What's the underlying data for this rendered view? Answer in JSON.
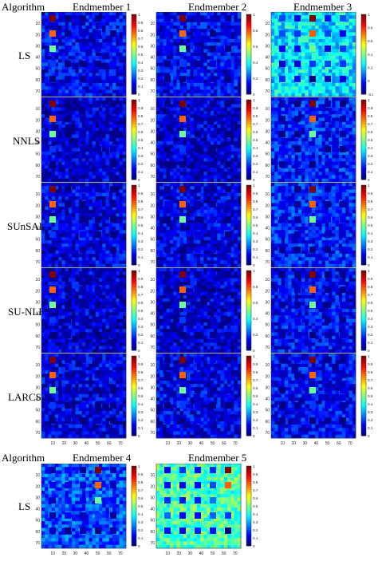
{
  "headers": {
    "top": [
      "Algorithm",
      "Endmember 1",
      "Endmember 2",
      "Endmember 3"
    ],
    "bottom": [
      "Algorithm",
      "Endmember 4",
      "Endmember 5"
    ]
  },
  "algorithms": [
    "LS",
    "NNLS",
    "SUnSAL",
    "SU-NLE",
    "LARCSU",
    "LS"
  ],
  "chart_data": {
    "type": "heatmap",
    "description_of_grid": "abundance maps 75x75 px, 5x5 grid of squares",
    "axis_ticks": [
      "10",
      "20",
      "30",
      "40",
      "50",
      "60",
      "70"
    ],
    "colormap": "jet",
    "panels": [
      {
        "algorithm": "LS",
        "endmember": "Endmember 1",
        "cbar": [
          "1",
          "0.9",
          "0.8",
          "0.7",
          "0.6",
          "0.5",
          "0.4",
          "0.3",
          "0.2",
          "0.1",
          "0"
        ],
        "background": 0.12,
        "column_hot": 0
      },
      {
        "algorithm": "LS",
        "endmember": "Endmember 2",
        "cbar": [
          "1",
          "0.8",
          "0.6",
          "0.4",
          "0.2",
          "0"
        ],
        "background": 0.12,
        "column_hot": 1
      },
      {
        "algorithm": "LS",
        "endmember": "Endmember 3",
        "cbar": [
          "1",
          "0.8",
          "0.6",
          "0.4",
          "0.2",
          "0",
          "-0.2"
        ],
        "background": 0.35,
        "column_hot": 2
      },
      {
        "algorithm": "NNLS",
        "endmember": "Endmember 1",
        "cbar": [
          "1",
          "0.9",
          "0.8",
          "0.7",
          "0.6",
          "0.5",
          "0.4",
          "0.3",
          "0.2",
          "0.1",
          "0"
        ],
        "background": 0.08,
        "column_hot": 0
      },
      {
        "algorithm": "NNLS",
        "endmember": "Endmember 2",
        "cbar": [
          "1",
          "0.9",
          "0.8",
          "0.7",
          "0.6",
          "0.5",
          "0.4",
          "0.3",
          "0.2",
          "0.1",
          "0"
        ],
        "background": 0.08,
        "column_hot": 1
      },
      {
        "algorithm": "NNLS",
        "endmember": "Endmember 3",
        "cbar": [
          "1",
          "0.9",
          "0.8",
          "0.7",
          "0.6",
          "0.5",
          "0.4",
          "0.3",
          "0.2",
          "0.1",
          "0"
        ],
        "background": 0.15,
        "column_hot": 2
      },
      {
        "algorithm": "SUnSAL",
        "endmember": "Endmember 1",
        "cbar": [
          "1",
          "0.9",
          "0.8",
          "0.7",
          "0.6",
          "0.5",
          "0.4",
          "0.3",
          "0.2",
          "0.1",
          "0"
        ],
        "background": 0.1,
        "column_hot": 0
      },
      {
        "algorithm": "SUnSAL",
        "endmember": "Endmember 2",
        "cbar": [
          "1",
          "0.9",
          "0.8",
          "0.7",
          "0.6",
          "0.5",
          "0.4",
          "0.3",
          "0.2",
          "0.1",
          "0"
        ],
        "background": 0.1,
        "column_hot": 1
      },
      {
        "algorithm": "SUnSAL",
        "endmember": "Endmember 3",
        "cbar": [
          "1",
          "0.9",
          "0.8",
          "0.7",
          "0.6",
          "0.5",
          "0.4",
          "0.3",
          "0.2",
          "0.1",
          "0"
        ],
        "background": 0.15,
        "column_hot": 2
      },
      {
        "algorithm": "SU-NLE",
        "endmember": "Endmember 1",
        "cbar": [
          "1",
          "0.9",
          "0.8",
          "0.7",
          "0.6",
          "0.5",
          "0.4",
          "0.3",
          "0.2",
          "0.1",
          "0"
        ],
        "background": 0.08,
        "column_hot": 0
      },
      {
        "algorithm": "SU-NLE",
        "endmember": "Endmember 2",
        "cbar": [
          "1",
          "0.8",
          "0.6",
          "0.4",
          "0.2",
          "0"
        ],
        "background": 0.08,
        "column_hot": 1
      },
      {
        "algorithm": "SU-NLE",
        "endmember": "Endmember 3",
        "cbar": [
          "1",
          "0.9",
          "0.8",
          "0.7",
          "0.6",
          "0.5",
          "0.4",
          "0.3",
          "0.2",
          "0.1",
          "0"
        ],
        "background": 0.12,
        "column_hot": 2
      },
      {
        "algorithm": "LARCSU",
        "endmember": "Endmember 1",
        "cbar": [
          "1",
          "0.9",
          "0.8",
          "0.7",
          "0.6",
          "0.5",
          "0.4",
          "0.3",
          "0.2",
          "0.1",
          "0"
        ],
        "background": 0.1,
        "column_hot": 0
      },
      {
        "algorithm": "LARCSU",
        "endmember": "Endmember 2",
        "cbar": [
          "1",
          "0.9",
          "0.8",
          "0.7",
          "0.6",
          "0.5",
          "0.4",
          "0.3",
          "0.2",
          "0.1",
          "0"
        ],
        "background": 0.1,
        "column_hot": 1
      },
      {
        "algorithm": "LARCSU",
        "endmember": "Endmember 3",
        "cbar": [
          "1",
          "0.9",
          "0.8",
          "0.7",
          "0.6",
          "0.5",
          "0.4",
          "0.3",
          "0.2",
          "0.1",
          "0"
        ],
        "background": 0.12,
        "column_hot": 2
      },
      {
        "algorithm": "LS",
        "endmember": "Endmember 4",
        "cbar": [
          "1",
          "0.9",
          "0.8",
          "0.7",
          "0.6",
          "0.5",
          "0.4",
          "0.3",
          "0.2",
          "0.1",
          "0"
        ],
        "background": 0.2,
        "column_hot": 3
      },
      {
        "algorithm": "LS",
        "endmember": "Endmember 5",
        "cbar": [
          "1",
          "0.9",
          "0.8",
          "0.7",
          "0.6",
          "0.5",
          "0.4",
          "0.3",
          "0.2",
          "0.1",
          "0"
        ],
        "background": 0.45,
        "column_hot": 4
      }
    ]
  }
}
